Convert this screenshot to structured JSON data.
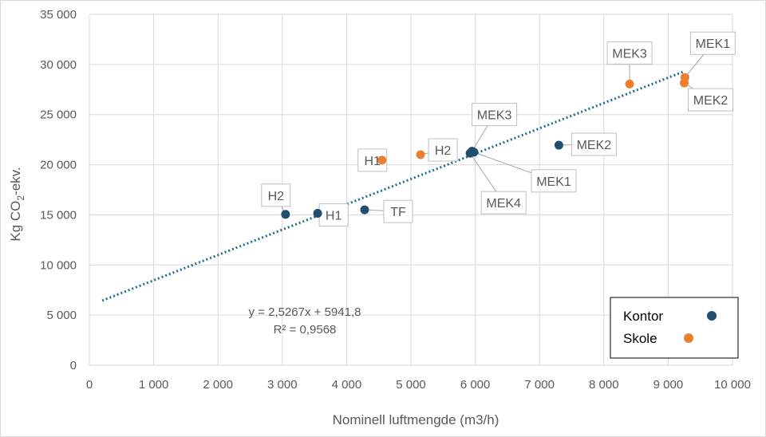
{
  "chart_data": {
    "type": "scatter",
    "xlabel": "Nominell luftmengde (m3/h)",
    "ylabel": "Kg CO2-ekv.",
    "ylabel_main": "Kg CO",
    "ylabel_sub": "2",
    "ylabel_tail": "-ekv.",
    "xlim": [
      0,
      10000
    ],
    "ylim": [
      0,
      35000
    ],
    "x_ticks": [
      0,
      1000,
      2000,
      3000,
      4000,
      5000,
      6000,
      7000,
      8000,
      9000,
      10000
    ],
    "x_tick_labels": [
      "0",
      "1 000",
      "2 000",
      "3 000",
      "4 000",
      "5 000",
      "6 000",
      "7 000",
      "8 000",
      "9 000",
      "10 000"
    ],
    "y_ticks": [
      0,
      5000,
      10000,
      15000,
      20000,
      25000,
      30000,
      35000
    ],
    "y_tick_labels": [
      "0",
      "5 000",
      "10 000",
      "15 000",
      "20 000",
      "25 000",
      "30 000",
      "35 000"
    ],
    "grid": true,
    "legend_position": "bottom-right",
    "series": [
      {
        "name": "Kontor",
        "color": "#1f4e6e",
        "points": [
          {
            "label": "H2",
            "x": 3050,
            "y": 15050
          },
          {
            "label": "H1",
            "x": 3550,
            "y": 15150
          },
          {
            "label": "TF",
            "x": 4280,
            "y": 15500
          },
          {
            "label": "MEK3",
            "x": 5950,
            "y": 21350
          },
          {
            "label": "MEK1",
            "x": 5980,
            "y": 21250
          },
          {
            "label": "MEK4",
            "x": 5920,
            "y": 21150
          },
          {
            "label": "MEK2",
            "x": 7300,
            "y": 21950
          }
        ]
      },
      {
        "name": "Skole",
        "color": "#ed7d31",
        "points": [
          {
            "label": "H1",
            "x": 4550,
            "y": 20450
          },
          {
            "label": "H2",
            "x": 5150,
            "y": 21000
          },
          {
            "label": "MEK3",
            "x": 8400,
            "y": 28050
          },
          {
            "label": "MEK1",
            "x": 9260,
            "y": 28700
          },
          {
            "label": "MEK2",
            "x": 9250,
            "y": 28150
          }
        ]
      }
    ],
    "trendline": {
      "color": "#1f6e8c",
      "slope": 2.5267,
      "intercept": 5941.8,
      "x_range": [
        200,
        9250
      ],
      "equation": "y = 2,5267x + 5941,8",
      "r_squared": "R² = 0,9568"
    }
  }
}
